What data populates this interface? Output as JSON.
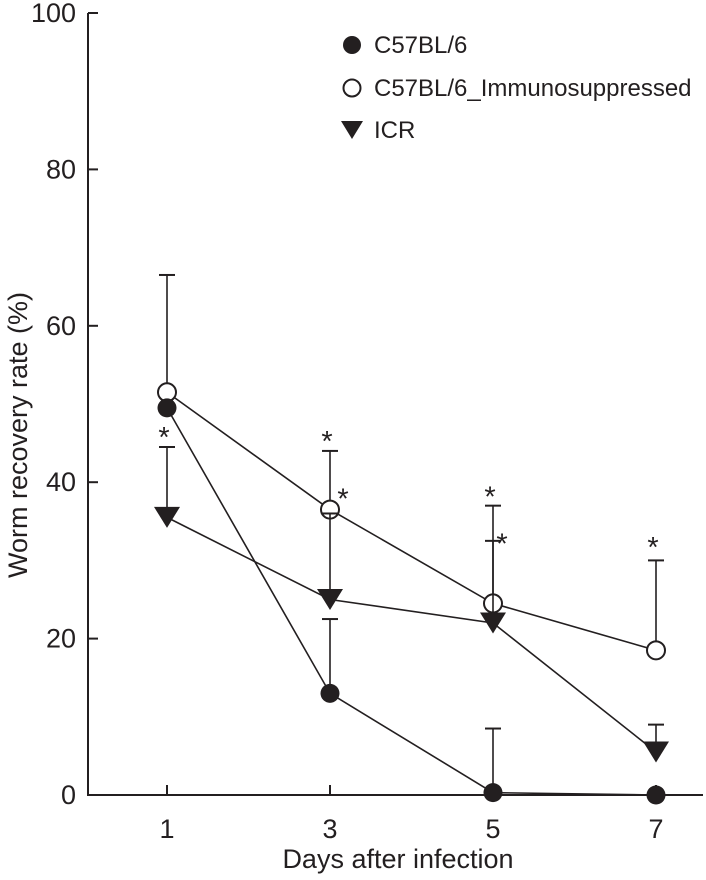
{
  "colors": {
    "ink": "#231f20",
    "background": "#ffffff",
    "marker_fill_open": "#ffffff"
  },
  "chart_data": {
    "type": "line",
    "title": "",
    "xlabel": "Days after infection",
    "ylabel": "Worm recovery rate (%)",
    "x": [
      1,
      3,
      5,
      7
    ],
    "x_tick_labels": [
      "1",
      "3",
      "5",
      "7"
    ],
    "y_ticks": [
      0,
      20,
      40,
      60,
      80,
      100
    ],
    "ylim": [
      0,
      100
    ],
    "grid": false,
    "legend_position": "top-center-inside",
    "error_bars": "upper-only",
    "series": [
      {
        "name": "C57BL/6",
        "marker": "filled-circle",
        "values": [
          49.5,
          13,
          0.3,
          0
        ],
        "err_top": [
          null,
          22.5,
          8.5,
          null
        ]
      },
      {
        "name": "C57BL/6_Immunosuppressed",
        "marker": "open-circle",
        "values": [
          51.5,
          36.5,
          24.5,
          18.5
        ],
        "err_top": [
          66.5,
          44,
          37,
          30
        ]
      },
      {
        "name": "ICR",
        "marker": "filled-triangle-down",
        "values": [
          35.5,
          25,
          22,
          5.5
        ],
        "err_top": [
          44.5,
          36,
          32.5,
          9
        ]
      }
    ],
    "annotations": {
      "significance_marker": "*",
      "asterisks": [
        {
          "x": 1,
          "y": 46.3,
          "dx": -3
        },
        {
          "x": 3,
          "y": 45.8,
          "dx": -3
        },
        {
          "x": 3,
          "y": 38.4,
          "dx": 13
        },
        {
          "x": 5,
          "y": 38.7,
          "dx": -3
        },
        {
          "x": 5,
          "y": 32.7,
          "dx": 9
        },
        {
          "x": 7,
          "y": 32.2,
          "dx": -3
        }
      ]
    }
  }
}
